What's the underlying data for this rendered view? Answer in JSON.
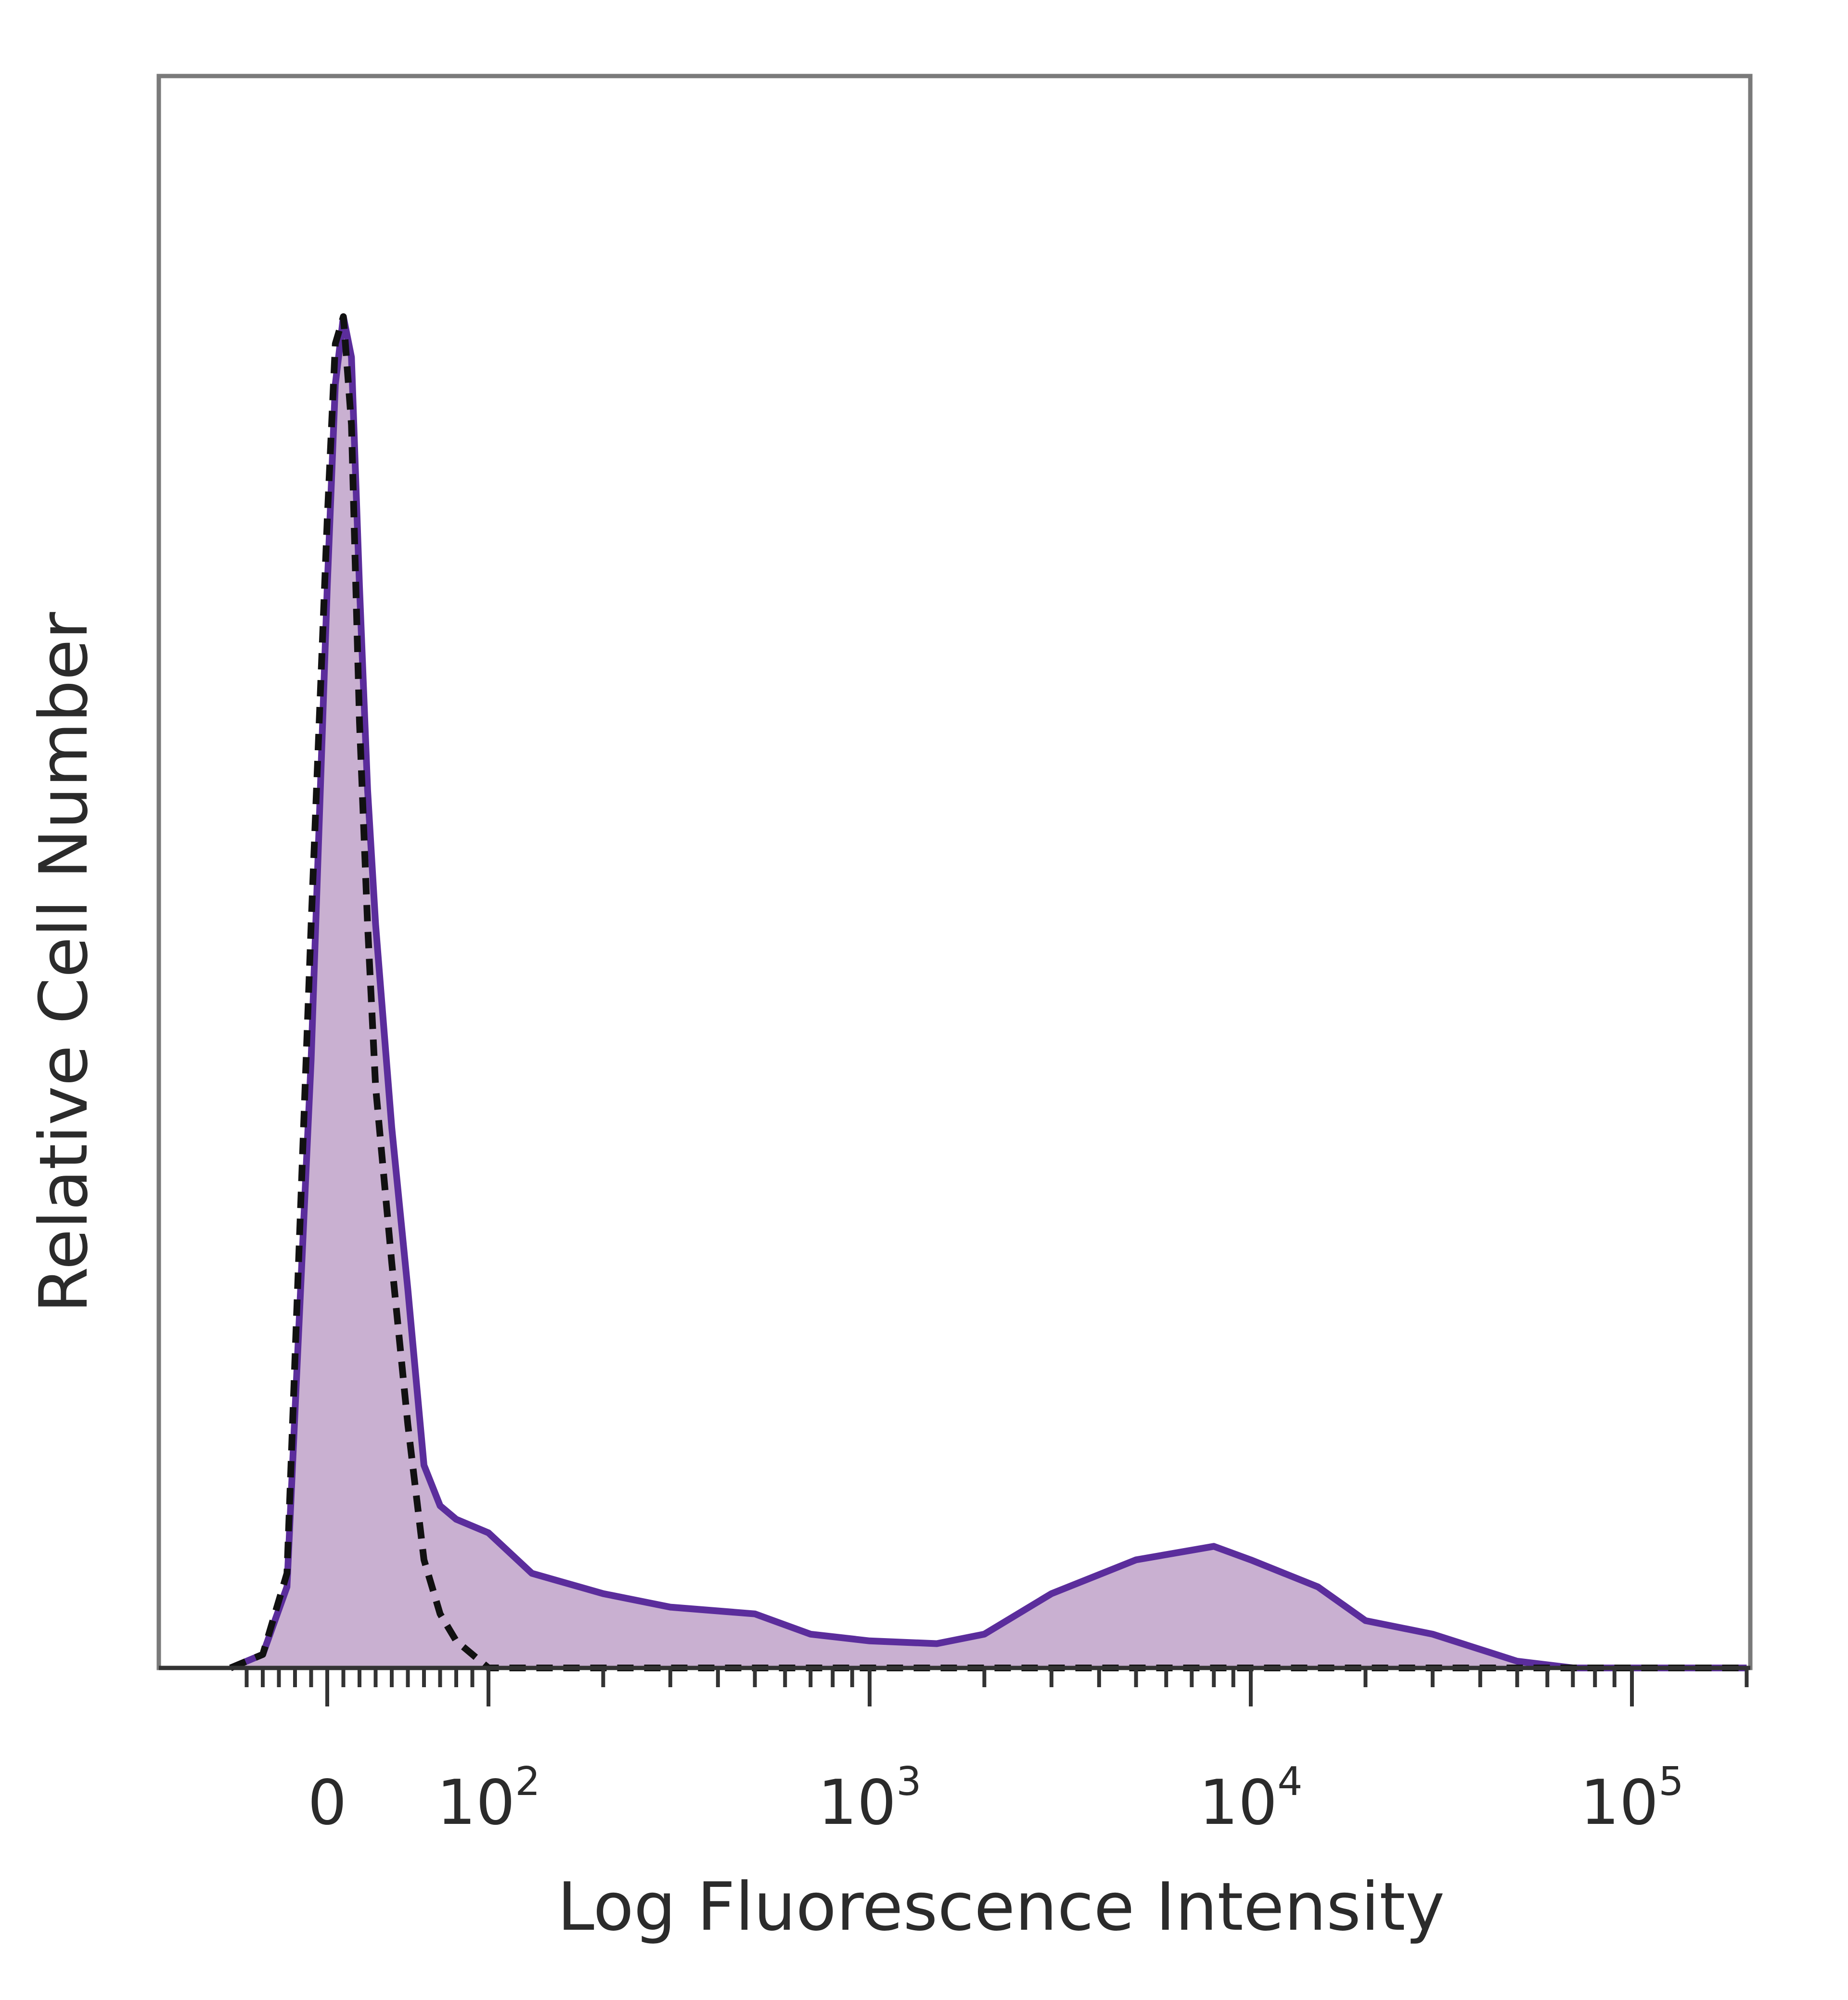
{
  "chart_data": {
    "type": "area",
    "title": "",
    "xlabel": "Log Fluorescence Intensity",
    "ylabel": "Relative Cell Number",
    "x_scale": "biexponential (linear near 0, log above)",
    "x_tick_labels": [
      {
        "label": "0",
        "value": 0
      },
      {
        "label": "10",
        "sup": "2",
        "value": 100
      },
      {
        "label": "10",
        "sup": "3",
        "value": 1000
      },
      {
        "label": "10",
        "sup": "4",
        "value": 10000
      },
      {
        "label": "10",
        "sup": "5",
        "value": 100000
      }
    ],
    "xlim": [
      -60,
      200000
    ],
    "ylim": [
      0,
      100
    ],
    "grid": false,
    "legend": "none",
    "series": [
      {
        "style": "filled-solid",
        "fill_color": "#c9b0d1",
        "line_color": "#5b2d9c",
        "x": [
          -60,
          -40,
          -25,
          -10,
          0,
          5,
          10,
          15,
          20,
          25,
          30,
          40,
          50,
          60,
          70,
          80,
          100,
          130,
          200,
          300,
          500,
          700,
          1000,
          1500,
          2000,
          3000,
          5000,
          8000,
          10000,
          15000,
          20000,
          30000,
          50000,
          70000,
          100000,
          200000
        ],
        "y": [
          0,
          1,
          6,
          45,
          80,
          95,
          100,
          97,
          80,
          65,
          55,
          40,
          28,
          15,
          12,
          11,
          10,
          7,
          5.5,
          4.5,
          4,
          2.5,
          2,
          1.8,
          2.5,
          5.5,
          8,
          9,
          8,
          6,
          3.5,
          2.5,
          0.5,
          0,
          0,
          0
        ]
      },
      {
        "style": "dashed",
        "line_color": "#111111",
        "x": [
          -60,
          -40,
          -25,
          -10,
          0,
          5,
          10,
          15,
          20,
          25,
          30,
          40,
          50,
          60,
          70,
          80,
          100,
          200,
          1000,
          10000,
          200000
        ],
        "y": [
          0,
          1,
          7,
          55,
          85,
          98,
          100,
          92,
          70,
          55,
          43,
          30,
          18,
          8,
          4,
          2,
          0,
          0,
          0,
          0,
          0
        ]
      }
    ]
  }
}
